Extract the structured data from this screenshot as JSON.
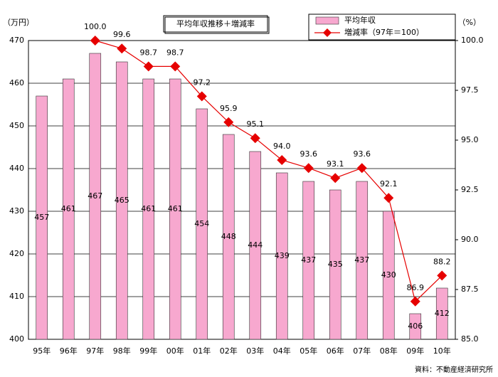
{
  "chart_data": {
    "type": "bar",
    "title": "平均年収推移＋増減率",
    "y_unit": "（万円）",
    "y2_unit": "（%）",
    "source": "資料：不動産経済研究所",
    "categories": [
      "95年",
      "96年",
      "97年",
      "98年",
      "99年",
      "00年",
      "01年",
      "02年",
      "03年",
      "04年",
      "05年",
      "06年",
      "07年",
      "08年",
      "09年",
      "10年"
    ],
    "series": [
      {
        "name": "平均年収",
        "type": "bar",
        "color": "#f7a8cf",
        "values": [
          457,
          461,
          467,
          465,
          461,
          461,
          454,
          448,
          444,
          439,
          437,
          435,
          437,
          430,
          406,
          412
        ]
      },
      {
        "name": "増減率（97年＝100）",
        "type": "line",
        "axis": "y2",
        "color": "#e60000",
        "values": [
          null,
          null,
          100.0,
          99.6,
          98.7,
          98.7,
          97.2,
          95.9,
          95.1,
          94.0,
          93.6,
          93.1,
          93.6,
          92.1,
          86.9,
          88.2
        ],
        "value_labels": [
          null,
          null,
          "100.0",
          "99.6",
          "98.7",
          "98.7",
          "97.2",
          "95.9",
          "95.1",
          "94.0",
          "93.6",
          "93.1",
          "93.6",
          "92.1",
          "86.9",
          "88.2"
        ]
      }
    ],
    "ylim": [
      400,
      470
    ],
    "yticks": [
      400,
      410,
      420,
      430,
      440,
      450,
      460,
      470
    ],
    "y2lim": [
      85,
      100
    ],
    "y2ticks": [
      {
        "value": 85,
        "label": "85.0"
      },
      {
        "value": 87.5,
        "label": "87.5"
      },
      {
        "value": 90,
        "label": "90.0"
      },
      {
        "value": 92.5,
        "label": "92.5"
      },
      {
        "value": 95,
        "label": "95.0"
      },
      {
        "value": 97.5,
        "label": "97.5"
      },
      {
        "value": 100,
        "label": "100.0"
      }
    ],
    "grid": true
  }
}
